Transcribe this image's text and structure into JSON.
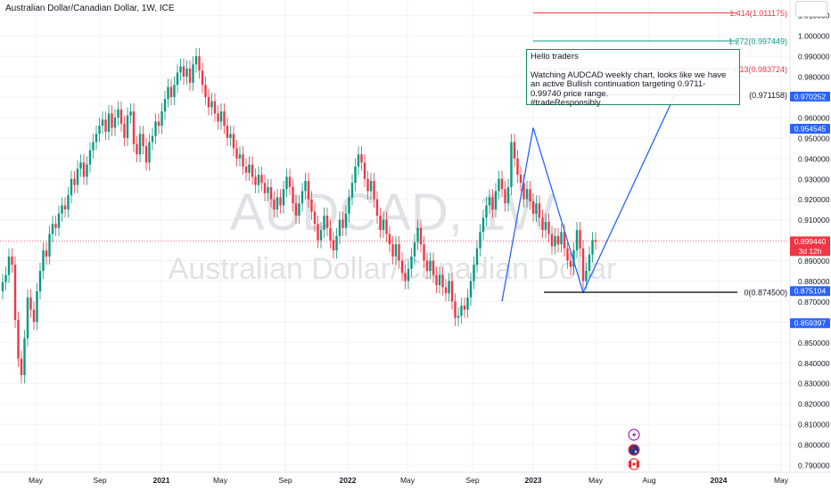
{
  "header": {
    "title": "Australian Dollar/Canadian Dollar, 1W, ICE"
  },
  "watermark": {
    "symbol": "AUDCAD, 1W",
    "name": "Australian Dollar/Canadian Dollar"
  },
  "note": {
    "line1": "Hello traders",
    "line2": "Watching AUDCAD weekly chart, looks like we have an active Bullish continuation targeting 0.9711- 0.99740 price range.",
    "line3": "#tradeResponsibly"
  },
  "fib_levels": [
    {
      "label": "1.414(1.011175)",
      "price": 1.011175,
      "color": "#f23645"
    },
    {
      "label": "1.272(0.997449)",
      "price": 0.997449,
      "color": "#089981"
    },
    {
      "label": "1.13(0.983724)",
      "price": 0.983724,
      "color": "#f23645"
    },
    {
      "label": "(0.971158)",
      "price": 0.971158,
      "color": "#131722"
    },
    {
      "label": "0(0.874500)",
      "price": 0.8745,
      "color": "#131722"
    }
  ],
  "price_tags": [
    {
      "label": "0.970252",
      "price": 0.970252,
      "color": "#2962ff"
    },
    {
      "label": "0.954545",
      "price": 0.954545,
      "color": "#2962ff"
    },
    {
      "label": "0.899440",
      "price": 0.89944,
      "color": "#f23645",
      "sub": "3d 12h"
    },
    {
      "label": "0.875104",
      "price": 0.875104,
      "color": "#2962ff"
    },
    {
      "label": "0.859397",
      "price": 0.859397,
      "color": "#2962ff"
    }
  ],
  "colors": {
    "up": "#089981",
    "down": "#f23645",
    "drawing": "#2962ff",
    "grid": "#f0f3fa"
  },
  "chart_data": {
    "type": "candlestick",
    "title": "Australian Dollar/Canadian Dollar, 1W, ICE",
    "ylim": [
      0.7865,
      1.0175
    ],
    "y_ticks": [
      "1.010000",
      "1.000000",
      "0.990000",
      "0.980000",
      "0.970000",
      "0.960000",
      "0.950000",
      "0.940000",
      "0.930000",
      "0.920000",
      "0.910000",
      "0.900000",
      "0.890000",
      "0.880000",
      "0.870000",
      "0.860000",
      "0.850000",
      "0.840000",
      "0.830000",
      "0.820000",
      "0.810000",
      "0.800000",
      "0.790000"
    ],
    "x_ticks": [
      "May",
      "Sep",
      "2021",
      "May",
      "Sep",
      "2022",
      "May",
      "Sep",
      "2023",
      "May",
      "Aug",
      "2024",
      "May"
    ],
    "last_price": 0.89944,
    "grid": true,
    "series": [
      {
        "name": "AUDCAD",
        "points": [
          [
            0.875,
            0.8795
          ],
          [
            0.8795,
            0.883
          ],
          [
            0.883,
            0.892
          ],
          [
            0.892,
            0.888
          ],
          [
            0.888,
            0.861
          ],
          [
            0.861,
            0.842
          ],
          [
            0.842,
            0.834
          ],
          [
            0.834,
            0.852
          ],
          [
            0.852,
            0.872
          ],
          [
            0.872,
            0.866
          ],
          [
            0.866,
            0.86
          ],
          [
            0.86,
            0.875
          ],
          [
            0.875,
            0.885
          ],
          [
            0.885,
            0.895
          ],
          [
            0.895,
            0.892
          ],
          [
            0.892,
            0.903
          ],
          [
            0.903,
            0.908
          ],
          [
            0.908,
            0.906
          ],
          [
            0.906,
            0.913
          ],
          [
            0.913,
            0.917
          ],
          [
            0.917,
            0.915
          ],
          [
            0.915,
            0.922
          ],
          [
            0.922,
            0.93
          ],
          [
            0.93,
            0.927
          ],
          [
            0.927,
            0.935
          ],
          [
            0.935,
            0.938
          ],
          [
            0.938,
            0.931
          ],
          [
            0.931,
            0.937
          ],
          [
            0.937,
            0.944
          ],
          [
            0.944,
            0.948
          ],
          [
            0.948,
            0.952
          ],
          [
            0.952,
            0.956
          ],
          [
            0.956,
            0.959
          ],
          [
            0.959,
            0.953
          ],
          [
            0.953,
            0.962
          ],
          [
            0.962,
            0.955
          ],
          [
            0.955,
            0.96
          ],
          [
            0.96,
            0.964
          ],
          [
            0.964,
            0.957
          ],
          [
            0.957,
            0.95
          ],
          [
            0.95,
            0.961
          ],
          [
            0.961,
            0.963
          ],
          [
            0.963,
            0.947
          ],
          [
            0.947,
            0.942
          ],
          [
            0.942,
            0.952
          ],
          [
            0.952,
            0.946
          ],
          [
            0.946,
            0.938
          ],
          [
            0.938,
            0.948
          ],
          [
            0.948,
            0.951
          ],
          [
            0.951,
            0.958
          ],
          [
            0.958,
            0.956
          ],
          [
            0.956,
            0.963
          ],
          [
            0.963,
            0.969
          ],
          [
            0.969,
            0.975
          ],
          [
            0.975,
            0.97
          ],
          [
            0.97,
            0.976
          ],
          [
            0.976,
            0.982
          ],
          [
            0.982,
            0.985
          ],
          [
            0.985,
            0.98
          ],
          [
            0.98,
            0.984
          ],
          [
            0.984,
            0.977
          ],
          [
            0.977,
            0.986
          ],
          [
            0.986,
            0.99
          ],
          [
            0.99,
            0.983
          ],
          [
            0.983,
            0.976
          ],
          [
            0.976,
            0.97
          ],
          [
            0.97,
            0.965
          ],
          [
            0.965,
            0.968
          ],
          [
            0.968,
            0.962
          ],
          [
            0.962,
            0.958
          ],
          [
            0.958,
            0.963
          ],
          [
            0.963,
            0.956
          ],
          [
            0.956,
            0.95
          ],
          [
            0.95,
            0.952
          ],
          [
            0.952,
            0.945
          ],
          [
            0.945,
            0.94
          ],
          [
            0.94,
            0.942
          ],
          [
            0.942,
            0.936
          ],
          [
            0.936,
            0.933
          ],
          [
            0.933,
            0.937
          ],
          [
            0.937,
            0.931
          ],
          [
            0.931,
            0.927
          ],
          [
            0.927,
            0.932
          ],
          [
            0.932,
            0.928
          ],
          [
            0.928,
            0.923
          ],
          [
            0.923,
            0.926
          ],
          [
            0.926,
            0.92
          ],
          [
            0.92,
            0.915
          ],
          [
            0.915,
            0.921
          ],
          [
            0.921,
            0.917
          ],
          [
            0.917,
            0.925
          ],
          [
            0.925,
            0.931
          ],
          [
            0.931,
            0.926
          ],
          [
            0.926,
            0.918
          ],
          [
            0.918,
            0.912
          ],
          [
            0.912,
            0.918
          ],
          [
            0.918,
            0.924
          ],
          [
            0.924,
            0.929
          ],
          [
            0.929,
            0.92
          ],
          [
            0.92,
            0.914
          ],
          [
            0.914,
            0.908
          ],
          [
            0.908,
            0.9
          ],
          [
            0.9,
            0.905
          ],
          [
            0.905,
            0.912
          ],
          [
            0.912,
            0.906
          ],
          [
            0.906,
            0.9
          ],
          [
            0.9,
            0.895
          ],
          [
            0.895,
            0.902
          ],
          [
            0.902,
            0.91
          ],
          [
            0.91,
            0.906
          ],
          [
            0.906,
            0.913
          ],
          [
            0.913,
            0.921
          ],
          [
            0.921,
            0.928
          ],
          [
            0.928,
            0.936
          ],
          [
            0.936,
            0.942
          ],
          [
            0.942,
            0.938
          ],
          [
            0.938,
            0.93
          ],
          [
            0.93,
            0.924
          ],
          [
            0.924,
            0.929
          ],
          [
            0.929,
            0.92
          ],
          [
            0.92,
            0.912
          ],
          [
            0.912,
            0.905
          ],
          [
            0.905,
            0.91
          ],
          [
            0.91,
            0.903
          ],
          [
            0.903,
            0.898
          ],
          [
            0.898,
            0.892
          ],
          [
            0.892,
            0.898
          ],
          [
            0.898,
            0.89
          ],
          [
            0.89,
            0.884
          ],
          [
            0.884,
            0.88
          ],
          [
            0.88,
            0.886
          ],
          [
            0.886,
            0.892
          ],
          [
            0.892,
            0.899
          ],
          [
            0.899,
            0.906
          ],
          [
            0.906,
            0.898
          ],
          [
            0.898,
            0.89
          ],
          [
            0.89,
            0.885
          ],
          [
            0.885,
            0.89
          ],
          [
            0.89,
            0.883
          ],
          [
            0.883,
            0.878
          ],
          [
            0.878,
            0.883
          ],
          [
            0.883,
            0.877
          ],
          [
            0.877,
            0.874
          ],
          [
            0.874,
            0.88
          ],
          [
            0.88,
            0.87
          ],
          [
            0.87,
            0.862
          ],
          [
            0.862,
            0.863
          ],
          [
            0.863,
            0.868
          ],
          [
            0.868,
            0.866
          ],
          [
            0.866,
            0.872
          ],
          [
            0.872,
            0.88
          ],
          [
            0.88,
            0.888
          ],
          [
            0.888,
            0.896
          ],
          [
            0.896,
            0.904
          ],
          [
            0.904,
            0.911
          ],
          [
            0.911,
            0.917
          ],
          [
            0.917,
            0.921
          ],
          [
            0.921,
            0.915
          ],
          [
            0.915,
            0.924
          ],
          [
            0.924,
            0.93
          ],
          [
            0.93,
            0.925
          ],
          [
            0.925,
            0.918
          ],
          [
            0.918,
            0.926
          ],
          [
            0.926,
            0.948
          ],
          [
            0.948,
            0.94
          ],
          [
            0.94,
            0.932
          ],
          [
            0.932,
            0.928
          ],
          [
            0.928,
            0.92
          ],
          [
            0.92,
            0.925
          ],
          [
            0.925,
            0.919
          ],
          [
            0.919,
            0.913
          ],
          [
            0.913,
            0.918
          ],
          [
            0.918,
            0.911
          ],
          [
            0.911,
            0.905
          ],
          [
            0.905,
            0.909
          ],
          [
            0.909,
            0.903
          ],
          [
            0.903,
            0.897
          ],
          [
            0.897,
            0.902
          ],
          [
            0.902,
            0.898
          ],
          [
            0.898,
            0.904
          ],
          [
            0.904,
            0.896
          ],
          [
            0.896,
            0.89
          ],
          [
            0.89,
            0.887
          ],
          [
            0.887,
            0.895
          ],
          [
            0.895,
            0.905
          ],
          [
            0.905,
            0.896
          ],
          [
            0.896,
            0.88
          ],
          [
            0.88,
            0.885
          ],
          [
            0.885,
            0.893
          ],
          [
            0.893,
            0.9
          ],
          [
            0.9,
            0.8994
          ]
        ]
      }
    ]
  }
}
